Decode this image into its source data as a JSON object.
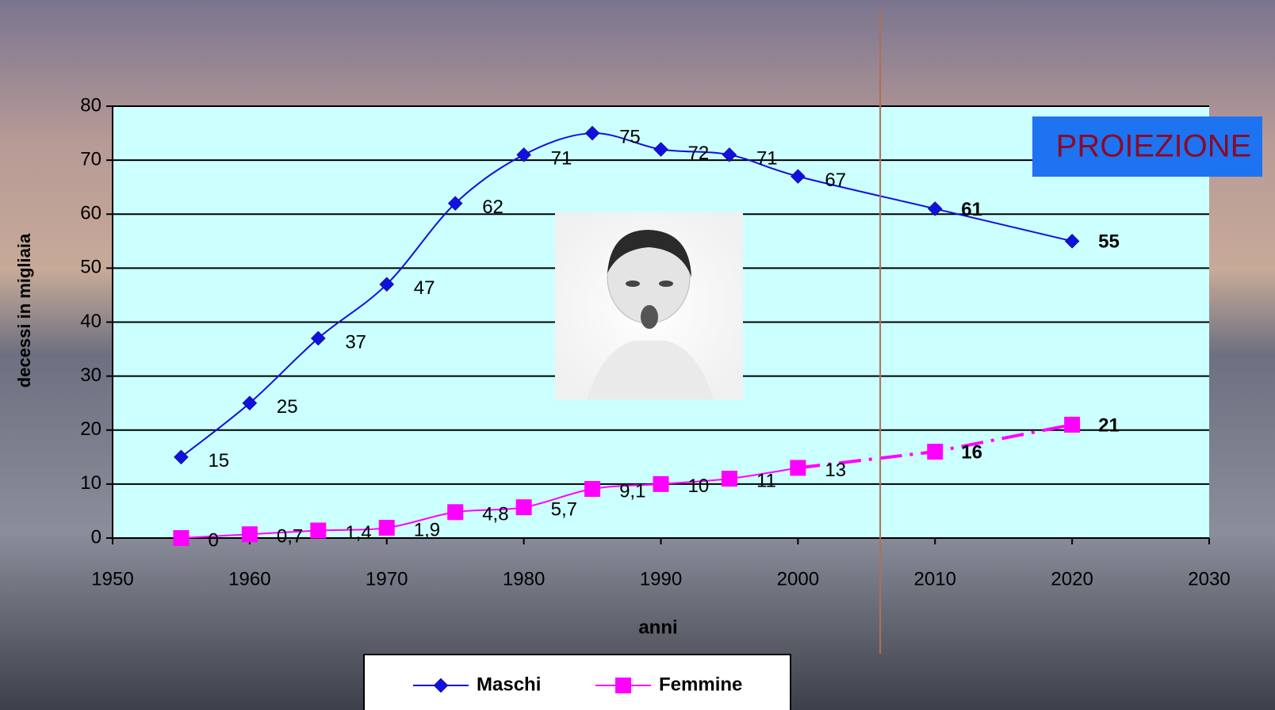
{
  "chart_data": {
    "type": "line",
    "x": [
      1955,
      1960,
      1965,
      1970,
      1975,
      1980,
      1985,
      1990,
      1995,
      2000,
      2010,
      2020
    ],
    "series": [
      {
        "name": "Maschi",
        "color": "#1010e0",
        "marker": "diamond",
        "values": [
          15,
          25,
          37,
          47,
          62,
          71,
          75,
          72,
          71,
          67,
          61,
          55
        ]
      },
      {
        "name": "Femmine",
        "color": "#ff00ff",
        "marker": "square",
        "values": [
          0,
          0.7,
          1.4,
          1.9,
          4.8,
          5.7,
          9.1,
          10,
          11,
          13,
          16,
          21
        ],
        "value_labels": [
          "0",
          "0,7",
          "1,4",
          "1,9",
          "4,8",
          "5,7",
          "9,1",
          "10",
          "11",
          "13",
          "16",
          "21"
        ]
      }
    ],
    "xlabel": "anni",
    "ylabel": "decessi in migliaia",
    "xlim": [
      1950,
      2030
    ],
    "xticks": [
      1950,
      1960,
      1970,
      1980,
      1990,
      2000,
      2010,
      2020,
      2030
    ],
    "ylim": [
      0,
      80
    ],
    "yticks": [
      0,
      10,
      20,
      30,
      40,
      50,
      60,
      70,
      80
    ],
    "grid": true,
    "legend": "bottom",
    "projection_start": 2006,
    "projection_label": "PROIEZIONE"
  }
}
